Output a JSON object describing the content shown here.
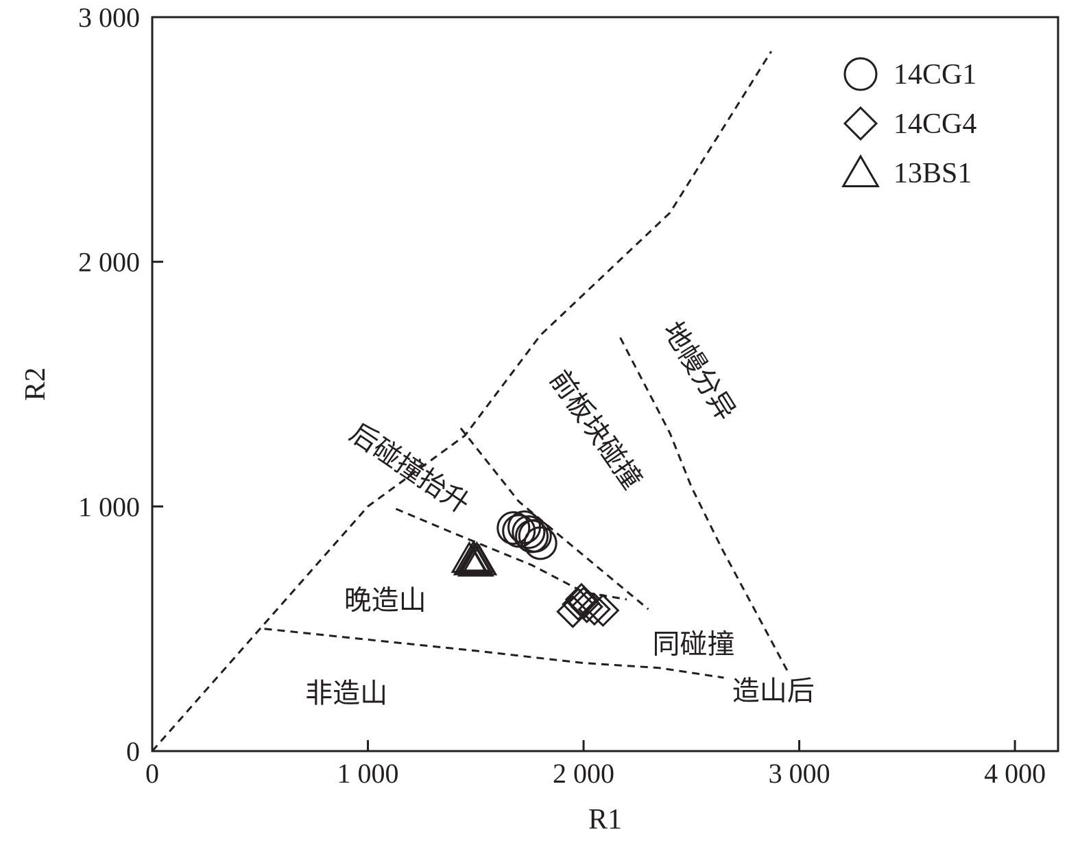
{
  "chart_data": {
    "type": "scatter",
    "title": "",
    "xlabel": "R1",
    "ylabel": "R2",
    "xlim": [
      0,
      4200
    ],
    "ylim": [
      0,
      3000
    ],
    "x_ticks": [
      {
        "value": 0,
        "label": "0"
      },
      {
        "value": 1000,
        "label": "1 000"
      },
      {
        "value": 2000,
        "label": "2 000"
      },
      {
        "value": 3000,
        "label": "3 000"
      },
      {
        "value": 4000,
        "label": "4 000"
      }
    ],
    "y_ticks": [
      {
        "value": 0,
        "label": "0"
      },
      {
        "value": 1000,
        "label": "1 000"
      },
      {
        "value": 2000,
        "label": "2 000"
      },
      {
        "value": 3000,
        "label": "3 000"
      }
    ],
    "grid": false,
    "legend": "top-right",
    "series": [
      {
        "name": "14CG1",
        "marker": "circle",
        "points": [
          [
            1675,
            912
          ],
          [
            1700,
            900
          ],
          [
            1725,
            915
          ],
          [
            1745,
            895
          ],
          [
            1760,
            878
          ],
          [
            1775,
            880
          ],
          [
            1800,
            850
          ]
        ]
      },
      {
        "name": "14CG4",
        "marker": "diamond",
        "points": [
          [
            1950,
            570
          ],
          [
            1975,
            600
          ],
          [
            1990,
            620
          ],
          [
            2000,
            605
          ],
          [
            2015,
            590
          ],
          [
            2050,
            580
          ],
          [
            2090,
            575
          ]
        ]
      },
      {
        "name": "13BS1",
        "marker": "triangle",
        "points": [
          [
            1470,
            785
          ],
          [
            1480,
            775
          ],
          [
            1490,
            790
          ],
          [
            1495,
            780
          ],
          [
            1500,
            770
          ],
          [
            1505,
            785
          ],
          [
            1515,
            775
          ]
        ]
      }
    ],
    "boundaries": [
      {
        "id": "mantle-fractionation-line",
        "points": [
          [
            0,
            0
          ],
          [
            1000,
            1000
          ],
          [
            1450,
            1290
          ],
          [
            1800,
            1700
          ],
          [
            2400,
            2200
          ],
          [
            2870,
            2860
          ]
        ]
      },
      {
        "id": "pre-collision-lower",
        "points": [
          [
            1430,
            1320
          ],
          [
            1700,
            1020
          ],
          [
            2000,
            800
          ],
          [
            2300,
            580
          ]
        ]
      },
      {
        "id": "late-orogenic-upper",
        "points": [
          [
            1130,
            990
          ],
          [
            1400,
            890
          ],
          [
            1760,
            760
          ],
          [
            2000,
            650
          ],
          [
            2200,
            620
          ]
        ]
      },
      {
        "id": "anorogenic-upper",
        "points": [
          [
            520,
            500
          ],
          [
            950,
            460
          ],
          [
            1500,
            410
          ],
          [
            2000,
            360
          ],
          [
            2350,
            340
          ],
          [
            2650,
            300
          ]
        ]
      },
      {
        "id": "mantle-fractionate-lower",
        "points": [
          [
            2170,
            1690
          ],
          [
            2400,
            1300
          ],
          [
            2500,
            1080
          ],
          [
            2640,
            830
          ],
          [
            2950,
            320
          ]
        ]
      }
    ],
    "regions": [
      {
        "id": "mantle-fractionates",
        "label": "地幔分异",
        "anchor": [
          2530,
          1550
        ],
        "rotate": 58
      },
      {
        "id": "pre-plate-collision",
        "label": "前板块碰撞",
        "anchor": [
          2050,
          1310
        ],
        "rotate": 55
      },
      {
        "id": "post-collision-uplift",
        "label": "后碰撞抬升",
        "anchor": [
          1190,
          1150
        ],
        "rotate": 34
      },
      {
        "id": "late-orogenic",
        "label": "晚造山",
        "anchor": [
          1080,
          610
        ],
        "rotate": 0
      },
      {
        "id": "syn-collision",
        "label": "同碰撞",
        "anchor": [
          2510,
          430
        ],
        "rotate": 0
      },
      {
        "id": "anorogenic",
        "label": "非造山",
        "anchor": [
          900,
          230
        ],
        "rotate": 0
      },
      {
        "id": "post-orogenic",
        "label": "造山后",
        "anchor": [
          2880,
          240
        ],
        "rotate": 0
      }
    ]
  }
}
